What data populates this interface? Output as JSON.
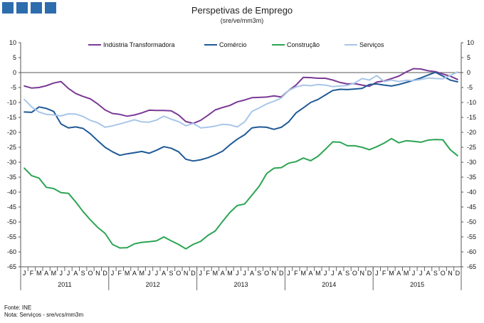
{
  "header": {
    "title": "Perspetivas de Emprego",
    "subtitle": "(sre/ve/mm3m)"
  },
  "footer": {
    "source": "Fonte: INE",
    "note": "Nota: Serviços - sre/vcs/mm3m"
  },
  "colors": {
    "brand": "#2e6dad",
    "industria": "#7b3a96",
    "comercio": "#1f5a96",
    "construcao": "#2ca453",
    "servicos": "#a9c6e8"
  },
  "chart_data": {
    "type": "line",
    "title": "Perspetivas de Emprego",
    "ylim": [
      -65,
      10
    ],
    "yticks": [
      10,
      5,
      0,
      -5,
      -10,
      -15,
      -20,
      -25,
      -30,
      -35,
      -40,
      -45,
      -50,
      -55,
      -60,
      -65
    ],
    "grid": false,
    "legend_position": "top",
    "month_labels": [
      "J",
      "F",
      "M",
      "A",
      "M",
      "J",
      "J",
      "A",
      "S",
      "O",
      "N",
      "D"
    ],
    "years": [
      "2011",
      "2012",
      "2013",
      "2014",
      "2015"
    ],
    "x": [
      "2011-01",
      "2011-02",
      "2011-03",
      "2011-04",
      "2011-05",
      "2011-06",
      "2011-07",
      "2011-08",
      "2011-09",
      "2011-10",
      "2011-11",
      "2011-12",
      "2012-01",
      "2012-02",
      "2012-03",
      "2012-04",
      "2012-05",
      "2012-06",
      "2012-07",
      "2012-08",
      "2012-09",
      "2012-10",
      "2012-11",
      "2012-12",
      "2013-01",
      "2013-02",
      "2013-03",
      "2013-04",
      "2013-05",
      "2013-06",
      "2013-07",
      "2013-08",
      "2013-09",
      "2013-10",
      "2013-11",
      "2013-12",
      "2014-01",
      "2014-02",
      "2014-03",
      "2014-04",
      "2014-05",
      "2014-06",
      "2014-07",
      "2014-08",
      "2014-09",
      "2014-10",
      "2014-11",
      "2014-12",
      "2015-01",
      "2015-02",
      "2015-03",
      "2015-04",
      "2015-05",
      "2015-06",
      "2015-07",
      "2015-08",
      "2015-09",
      "2015-10",
      "2015-11",
      "2015-12"
    ],
    "series": [
      {
        "name": "Indústria Transformadora",
        "values": [
          -4.5,
          -5.2,
          -5.0,
          -4.4,
          -3.5,
          -3.0,
          -5.3,
          -7.0,
          -8.0,
          -8.8,
          -10.5,
          -12.5,
          -13.7,
          -14.0,
          -14.6,
          -14.2,
          -13.5,
          -12.6,
          -12.7,
          -12.7,
          -12.8,
          -14.2,
          -16.4,
          -17.0,
          -16.0,
          -14.3,
          -12.5,
          -11.7,
          -11.0,
          -9.8,
          -9.2,
          -8.4,
          -8.3,
          -8.2,
          -7.8,
          -8.2,
          -6.0,
          -4.2,
          -1.6,
          -1.7,
          -1.9,
          -1.9,
          -2.5,
          -3.3,
          -3.8,
          -3.7,
          -4.2,
          -4.6,
          -3.2,
          -2.8,
          -2.0,
          -1.2,
          0.2,
          1.3,
          1.2,
          0.6,
          0.3,
          -0.5,
          -1.2,
          -2.3
        ]
      },
      {
        "name": "Comércio",
        "values": [
          -13.2,
          -13.3,
          -11.5,
          -12.0,
          -13.0,
          -17.2,
          -18.5,
          -18.2,
          -18.7,
          -20.5,
          -22.8,
          -25.0,
          -26.5,
          -27.7,
          -27.2,
          -26.8,
          -26.4,
          -27.0,
          -26.0,
          -24.8,
          -25.3,
          -26.5,
          -29.0,
          -29.6,
          -29.2,
          -28.5,
          -27.5,
          -26.3,
          -24.2,
          -22.3,
          -20.8,
          -18.5,
          -18.2,
          -18.3,
          -19.0,
          -18.3,
          -16.5,
          -13.5,
          -11.8,
          -10.0,
          -9.0,
          -7.5,
          -6.0,
          -5.6,
          -5.7,
          -5.5,
          -5.3,
          -4.0,
          -3.8,
          -4.2,
          -4.5,
          -4.0,
          -3.3,
          -2.6,
          -1.8,
          -0.8,
          0.1,
          -1.2,
          -2.5,
          -3.1
        ]
      },
      {
        "name": "Construção",
        "values": [
          -32.0,
          -34.5,
          -35.3,
          -38.4,
          -38.8,
          -40.2,
          -40.4,
          -43.3,
          -46.5,
          -49.3,
          -51.8,
          -53.8,
          -57.5,
          -58.7,
          -58.6,
          -57.3,
          -56.8,
          -56.6,
          -56.3,
          -55.0,
          -56.3,
          -57.5,
          -59.0,
          -57.5,
          -56.5,
          -54.5,
          -53.0,
          -49.8,
          -46.8,
          -44.5,
          -44.0,
          -41.0,
          -38.0,
          -33.8,
          -32.0,
          -31.8,
          -30.3,
          -29.8,
          -28.6,
          -29.5,
          -28.0,
          -25.7,
          -23.2,
          -23.3,
          -24.5,
          -24.5,
          -25.0,
          -25.8,
          -24.8,
          -23.6,
          -22.1,
          -23.5,
          -22.8,
          -23.0,
          -23.3,
          -22.6,
          -22.4,
          -22.5,
          -25.8,
          -27.8
        ]
      },
      {
        "name": "Serviços",
        "values": [
          -9.0,
          -11.5,
          -13.2,
          -14.0,
          -14.2,
          -14.5,
          -13.8,
          -13.9,
          -14.7,
          -16.0,
          -16.8,
          -18.3,
          -17.8,
          -17.2,
          -16.5,
          -15.8,
          -16.5,
          -16.6,
          -15.9,
          -14.6,
          -15.6,
          -16.4,
          -17.8,
          -17.0,
          -18.5,
          -18.3,
          -17.9,
          -17.3,
          -17.5,
          -18.2,
          -16.5,
          -13.0,
          -11.8,
          -10.5,
          -9.6,
          -8.5,
          -6.0,
          -4.8,
          -4.2,
          -4.4,
          -4.0,
          -4.2,
          -4.7,
          -4.5,
          -4.3,
          -3.5,
          -2.0,
          -2.5,
          -1.0,
          -3.0,
          -2.5,
          -3.0,
          -2.6,
          -2.7,
          -2.3,
          -1.8,
          -2.0,
          -2.1,
          -1.0,
          0.2
        ]
      }
    ]
  }
}
